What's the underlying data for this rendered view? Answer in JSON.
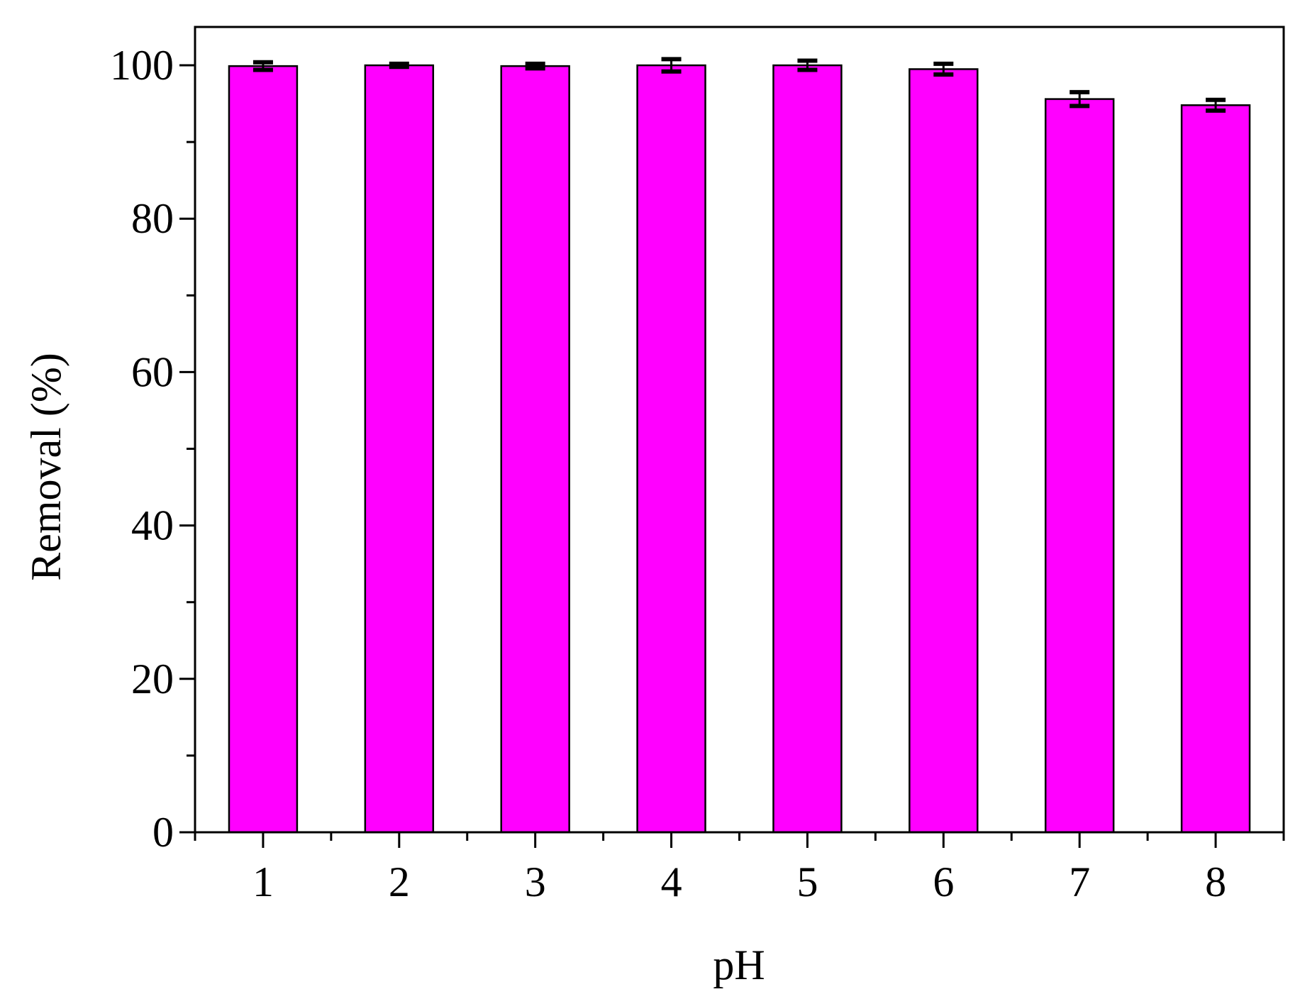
{
  "chart_data": {
    "type": "bar",
    "title": "",
    "xlabel": "pH",
    "ylabel": "Removal (%)",
    "categories": [
      "1",
      "2",
      "3",
      "4",
      "5",
      "6",
      "7",
      "8"
    ],
    "values": [
      99.9,
      100.0,
      99.9,
      100.0,
      100.0,
      99.5,
      95.6,
      94.8
    ],
    "errors": [
      0.5,
      0.2,
      0.3,
      0.8,
      0.6,
      0.7,
      0.9,
      0.7
    ],
    "x_positions": [
      1,
      2,
      3,
      4,
      5,
      6,
      7,
      8
    ],
    "xlim": [
      0.5,
      8.5
    ],
    "ylim": [
      0,
      105
    ],
    "y_major_ticks": [
      0,
      20,
      40,
      60,
      80,
      100
    ],
    "y_minor_ticks": [
      10,
      30,
      50,
      70,
      90
    ],
    "x_tick_labels": [
      "1",
      "2",
      "3",
      "4",
      "5",
      "6",
      "7",
      "8"
    ],
    "y_tick_labels": [
      "0",
      "20",
      "40",
      "60",
      "80",
      "100"
    ],
    "grid": false,
    "legend": "none",
    "colors": {
      "bar_fill": "#ff00ff",
      "bar_stroke": "#000000",
      "axis": "#000000",
      "error_bar": "#000000"
    }
  }
}
